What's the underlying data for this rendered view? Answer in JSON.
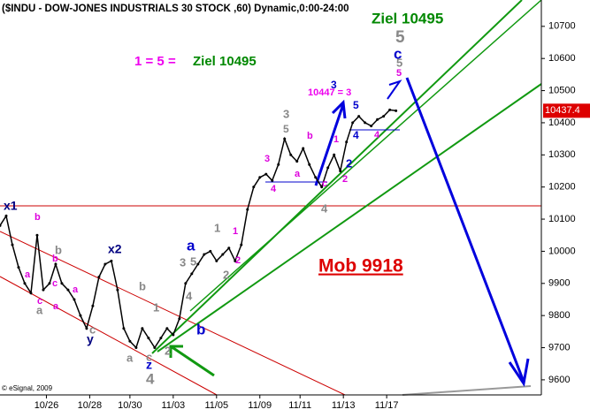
{
  "chart_data": {
    "type": "line",
    "title": "($INDU - DOW-JONES INDUSTRIALS 30 STOCK ,60) Dynamic,0:00-24:00",
    "x": [
      0,
      2,
      4,
      6,
      8,
      10,
      12,
      14,
      16,
      18,
      20,
      22,
      24,
      26,
      28,
      30,
      32,
      34,
      36,
      38,
      40,
      42,
      44,
      46,
      48,
      50,
      52,
      54,
      56,
      58,
      60,
      62,
      64,
      66,
      68,
      70,
      72,
      74,
      76,
      78,
      80,
      82,
      84,
      86,
      88,
      90,
      92,
      94,
      96,
      98,
      100,
      102,
      104,
      106,
      108,
      110,
      112,
      114,
      116,
      118,
      120,
      122,
      124,
      126,
      128
    ],
    "values": [
      10080,
      10110,
      10020,
      9950,
      9900,
      9870,
      10050,
      9880,
      9900,
      9960,
      9900,
      9880,
      9850,
      9800,
      9760,
      9830,
      9920,
      9960,
      9970,
      9880,
      9760,
      9720,
      9700,
      9760,
      9730,
      9700,
      9730,
      9760,
      9740,
      9790,
      9900,
      9930,
      9960,
      9990,
      10000,
      9970,
      9990,
      10010,
      9970,
      10020,
      10130,
      10200,
      10230,
      10240,
      10220,
      10270,
      10350,
      10300,
      10280,
      10320,
      10270,
      10230,
      10200,
      10260,
      10300,
      10250,
      10340,
      10400,
      10420,
      10400,
      10390,
      10410,
      10420,
      10440,
      10437.4
    ],
    "color": "#000000",
    "last_value": 10437.4,
    "xlim": [
      0,
      175
    ],
    "ylim": [
      9553,
      10782
    ],
    "xticks": [
      {
        "value": 15,
        "label": "10/26"
      },
      {
        "value": 29,
        "label": "10/28"
      },
      {
        "value": 42,
        "label": "10/30"
      },
      {
        "value": 56,
        "label": "11/03"
      },
      {
        "value": 70,
        "label": "11/05"
      },
      {
        "value": 84,
        "label": "11/09"
      },
      {
        "value": 97,
        "label": "11/11"
      },
      {
        "value": 111,
        "label": "11/13"
      },
      {
        "value": 125,
        "label": "11/17"
      }
    ],
    "yticks": [
      9600,
      9700,
      9800,
      9900,
      10000,
      10100,
      10200,
      10300,
      10400,
      10500,
      10600,
      10700
    ],
    "annotations": [
      {
        "text": "x1",
        "color": "#000080"
      },
      {
        "text": "x2",
        "color": "#000080"
      },
      {
        "text": "y",
        "color": "#000080"
      },
      {
        "text": "a",
        "color": "#0000cc"
      },
      {
        "text": "b",
        "color": "#0000cc"
      },
      {
        "text": "c",
        "color": "#0000cc"
      },
      {
        "text": "z",
        "color": "#0000cc"
      },
      {
        "text": "2",
        "color": "#0000cc"
      },
      {
        "text": "3",
        "color": "#0000cc"
      },
      {
        "text": "5",
        "color": "#0000cc"
      },
      {
        "text": "4",
        "color": "#0000cc"
      },
      {
        "text": "b",
        "color": "#dd00dd"
      },
      {
        "text": "a",
        "color": "#dd00dd"
      },
      {
        "text": "c",
        "color": "#dd00dd"
      },
      {
        "text": "b",
        "color": "#dd00dd"
      },
      {
        "text": "c",
        "color": "#dd00dd"
      },
      {
        "text": "a",
        "color": "#dd00dd"
      },
      {
        "text": "a",
        "color": "#dd00dd"
      },
      {
        "text": "b",
        "color": "#dd00dd"
      },
      {
        "text": "a",
        "color": "#dd00dd"
      },
      {
        "text": "1",
        "color": "#dd00dd"
      },
      {
        "text": "2",
        "color": "#dd00dd"
      },
      {
        "text": "3",
        "color": "#dd00dd"
      },
      {
        "text": "4",
        "color": "#dd00dd"
      },
      {
        "text": "1",
        "color": "#dd00dd"
      },
      {
        "text": "2",
        "color": "#dd00dd"
      },
      {
        "text": "4",
        "color": "#dd00dd"
      },
      {
        "text": "5",
        "color": "#dd00dd"
      },
      {
        "text": "c",
        "color": "#dd00dd"
      },
      {
        "text": "b",
        "color": "#888888"
      },
      {
        "text": "a",
        "color": "#888888"
      },
      {
        "text": "c",
        "color": "#888888"
      },
      {
        "text": "b",
        "color": "#888888"
      },
      {
        "text": "a",
        "color": "#888888"
      },
      {
        "text": "c",
        "color": "#888888"
      },
      {
        "text": "4",
        "color": "#888888"
      },
      {
        "text": "2",
        "color": "#888888"
      },
      {
        "text": "1",
        "color": "#888888"
      },
      {
        "text": "3",
        "color": "#888888"
      },
      {
        "text": "5",
        "color": "#888888"
      },
      {
        "text": "4",
        "color": "#888888"
      },
      {
        "text": "1",
        "color": "#888888"
      },
      {
        "text": "2",
        "color": "#888888"
      },
      {
        "text": "3",
        "color": "#888888"
      },
      {
        "text": "5",
        "color": "#888888"
      },
      {
        "text": "4",
        "color": "#888888"
      },
      {
        "text": "5",
        "color": "#888888"
      },
      {
        "text": "5",
        "color": "#888888"
      },
      {
        "text": "Ziel 10495",
        "color": "#008800"
      },
      {
        "text": "1 = 5 =",
        "color": "#ee00ee"
      },
      {
        "text": "Ziel 10495",
        "color": "#008800"
      },
      {
        "text": "10447 = 3",
        "color": "#ee00ee"
      },
      {
        "text": "Mob 9918",
        "color": "#dd0000"
      },
      {
        "text": "© eSignal, 2009",
        "color": "#000000"
      }
    ]
  }
}
